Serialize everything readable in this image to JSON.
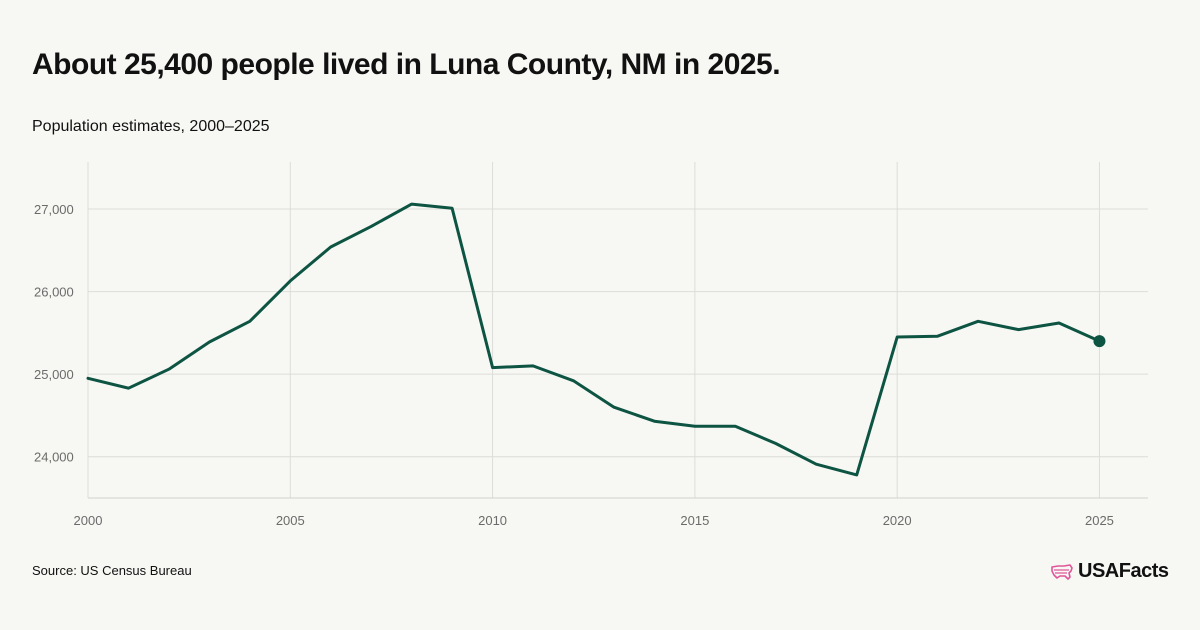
{
  "header": {
    "title": "About 25,400 people lived in Luna County, NM in 2025.",
    "subtitle": "Population estimates, 2000–2025"
  },
  "footer": {
    "source": "Source: US Census Bureau",
    "logo_text": "USAFacts"
  },
  "colors": {
    "line": "#0d5443",
    "grid": "#dcdcd8",
    "axis": "#d0d0cc",
    "tick_text": "#6b6b6b",
    "logo_accent": "#e0569a",
    "background": "#f7f7f3"
  },
  "chart_data": {
    "type": "line",
    "title": "About 25,400 people lived in Luna County, NM in 2025.",
    "subtitle": "Population estimates, 2000–2025",
    "xlabel": "",
    "ylabel": "",
    "x": [
      2000,
      2001,
      2002,
      2003,
      2004,
      2005,
      2006,
      2007,
      2008,
      2009,
      2010,
      2011,
      2012,
      2013,
      2014,
      2015,
      2016,
      2017,
      2018,
      2019,
      2020,
      2021,
      2022,
      2023,
      2024,
      2025
    ],
    "series": [
      {
        "values": [
          24950,
          24830,
          25060,
          25390,
          25640,
          26130,
          26540,
          26790,
          27060,
          27010,
          25080,
          25100,
          24920,
          24600,
          24430,
          24370,
          24370,
          24160,
          23910,
          23780,
          25450,
          25460,
          25640,
          25540,
          25620,
          25400
        ]
      }
    ],
    "xlim": [
      2000,
      2026.2
    ],
    "ylim": [
      23500,
      27570
    ],
    "x_ticks": [
      2000,
      2005,
      2010,
      2015,
      2020,
      2025
    ],
    "x_tick_labels": [
      "2000",
      "2005",
      "2010",
      "2015",
      "2020",
      "2025"
    ],
    "y_ticks": [
      24000,
      25000,
      26000,
      27000
    ],
    "y_tick_labels": [
      "24,000",
      "25,000",
      "26,000",
      "27,000"
    ],
    "grid": true,
    "end_marker": true
  }
}
